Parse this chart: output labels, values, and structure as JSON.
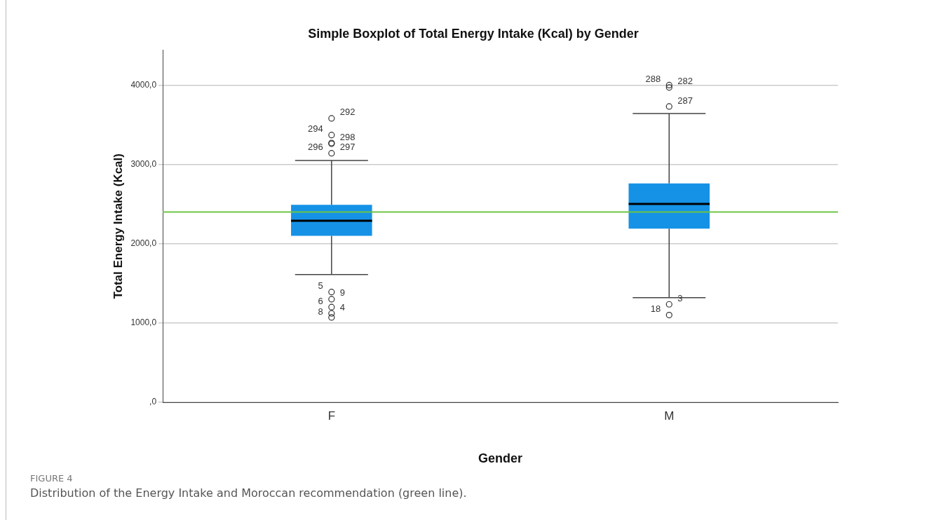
{
  "chart_data": {
    "type": "box",
    "title": "Simple Boxplot of Total Energy Intake (Kcal) by Gender",
    "xlabel": "Gender",
    "ylabel": "Total Energy Intake (Kcal)",
    "categories": [
      "F",
      "M"
    ],
    "color": "#1592e6",
    "boxes": [
      {
        "low": 1610,
        "q1": 2100,
        "median": 2290,
        "q3": 2490,
        "high": 3050
      },
      {
        "low": 1320,
        "q1": 2190,
        "median": 2500,
        "q3": 2760,
        "high": 3640
      }
    ],
    "series": [
      {
        "type": "scatter",
        "color": "#333333",
        "x": [
          "F",
          "F",
          "F",
          "F",
          "F",
          "F",
          "F",
          "F",
          "F",
          "F",
          "M",
          "M",
          "M",
          "M",
          "M"
        ],
        "values": [
          3580,
          3370,
          3270,
          3260,
          3140,
          1390,
          1300,
          1200,
          1120,
          1070,
          4000,
          3970,
          3730,
          1235,
          1100
        ]
      }
    ],
    "ylim": [
      0,
      4440
    ],
    "yticks": [
      {
        "value": 0,
        "label": ",0"
      },
      {
        "value": 1000,
        "label": "1000,0"
      },
      {
        "value": 2000,
        "label": "2000,0"
      },
      {
        "value": 3000,
        "label": "3000,0"
      },
      {
        "value": 4000,
        "label": "4000,0"
      }
    ],
    "grid": "y",
    "marker": "circle",
    "ref_lines": [
      {
        "axis": "y",
        "value": 2400,
        "color": "#6cc644"
      }
    ],
    "annotations": [
      {
        "text": "292",
        "x": "F",
        "y": 3580
      },
      {
        "text": "294",
        "x": "F",
        "y": 3370
      },
      {
        "text": "298",
        "x": "F",
        "y": 3270
      },
      {
        "text": "296",
        "x": "F",
        "y": 3140
      },
      {
        "text": "297",
        "x": "F",
        "y": 3140
      },
      {
        "text": "5",
        "x": "F",
        "y": 1390
      },
      {
        "text": "9",
        "x": "F",
        "y": 1300
      },
      {
        "text": "6",
        "x": "F",
        "y": 1200
      },
      {
        "text": "4",
        "x": "F",
        "y": 1120
      },
      {
        "text": "8",
        "x": "F",
        "y": 1070
      },
      {
        "text": "282",
        "x": "M",
        "y": 3970
      },
      {
        "text": "288",
        "x": "M",
        "y": 4000
      },
      {
        "text": "287",
        "x": "M",
        "y": 3730
      },
      {
        "text": "18",
        "x": "M",
        "y": 1100
      },
      {
        "text": "3",
        "x": "M",
        "y": 1235
      },
      "FIGURE 4",
      "Distribution of the Energy Intake and Moroccan recommendation (green line)."
    ]
  }
}
